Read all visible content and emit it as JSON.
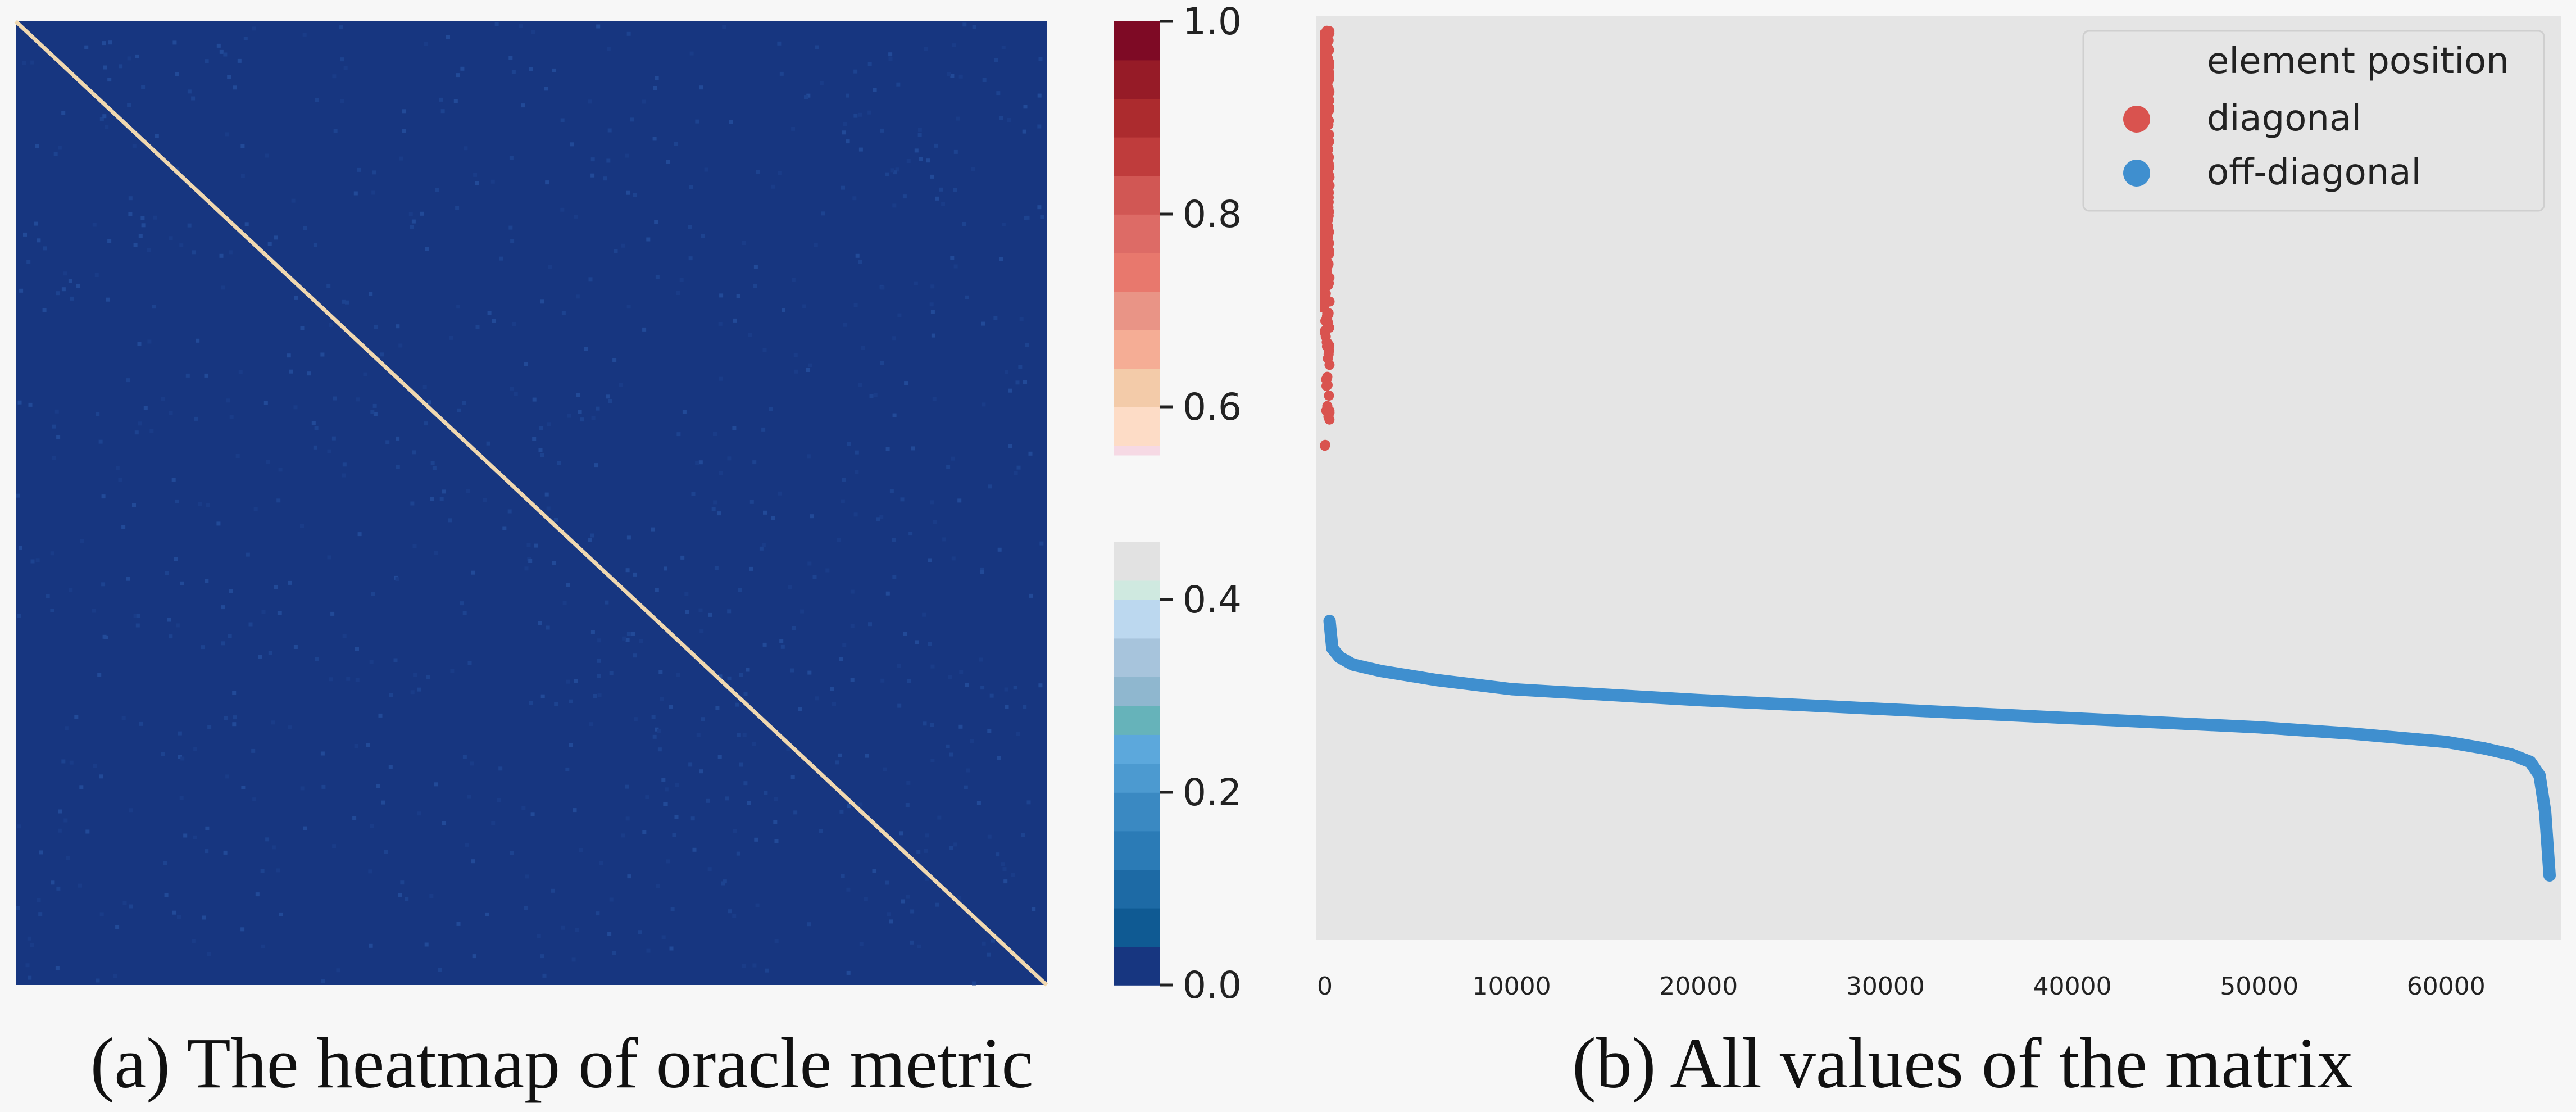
{
  "chart_data": [
    {
      "type": "heatmap",
      "caption": "(a) The heatmap of oracle metric",
      "matrix_description": "square similarity matrix, off-diagonal values near 0.0, diagonal values high",
      "off_diagonal_value": 0.0,
      "diagonal_values": [
        0.55,
        1.0
      ],
      "colorbar": {
        "ticks": [
          "0.0",
          "0.2",
          "0.4",
          "0.6",
          "0.8",
          "1.0"
        ],
        "range": [
          0,
          1
        ]
      },
      "colors": {
        "low": "#173680",
        "diag": "#f0d8b0"
      }
    },
    {
      "type": "scatter",
      "caption": "(b) All values of the matrix",
      "xlim": [
        0,
        65536
      ],
      "ylim": [
        0.0,
        1.0
      ],
      "x_ticks": [
        "0",
        "10000",
        "20000",
        "30000",
        "40000",
        "50000",
        "60000"
      ],
      "legend": {
        "title": "element position",
        "entries": [
          {
            "label": "diagonal",
            "color": "#d9534f"
          },
          {
            "label": "off-diagonal",
            "color": "#3f8fcf"
          }
        ]
      },
      "series": [
        {
          "name": "diagonal",
          "color": "#d9534f",
          "x_range": [
            0,
            256
          ],
          "y_range": [
            0.53,
            0.99
          ]
        },
        {
          "name": "off-diagonal",
          "color": "#3f8fcf",
          "x": [
            256,
            400,
            800,
            1500,
            3000,
            6000,
            10000,
            20000,
            30000,
            40000,
            50000,
            55000,
            60000,
            62000,
            63500,
            64500,
            65000,
            65300,
            65536
          ],
          "y": [
            0.34,
            0.31,
            0.3,
            0.292,
            0.285,
            0.275,
            0.265,
            0.253,
            0.243,
            0.233,
            0.223,
            0.216,
            0.207,
            0.2,
            0.193,
            0.185,
            0.17,
            0.13,
            0.06
          ]
        }
      ]
    }
  ]
}
